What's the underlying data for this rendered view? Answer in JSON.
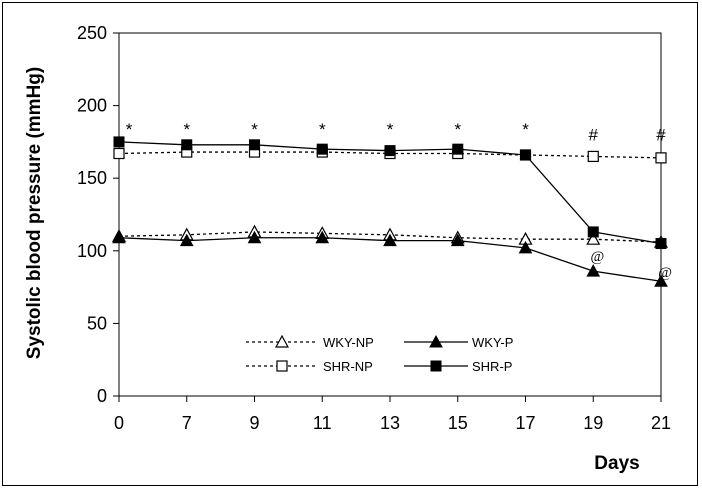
{
  "chart_data": {
    "type": "line",
    "title": "",
    "xlabel": "Days",
    "ylabel": "Systolic blood pressure (mmHg)",
    "categories": [
      "0",
      "7",
      "9",
      "11",
      "13",
      "15",
      "17",
      "19",
      "21"
    ],
    "ylim": [
      0,
      250
    ],
    "yticks": [
      "0",
      "50",
      "100",
      "150",
      "200",
      "250"
    ],
    "grid": false,
    "legend_position": "bottom-center",
    "series": [
      {
        "name": "WKY-NP",
        "line": "dashed",
        "marker": "open-triangle",
        "values": [
          110,
          111,
          113,
          112,
          111,
          109,
          108,
          108,
          106
        ]
      },
      {
        "name": "WKY-P",
        "line": "solid",
        "marker": "filled-triangle",
        "values": [
          109,
          107,
          109,
          109,
          107,
          107,
          102,
          86,
          79
        ]
      },
      {
        "name": "SHR-NP",
        "line": "dashed",
        "marker": "open-square",
        "values": [
          167,
          168,
          168,
          168,
          167,
          167,
          166,
          165,
          164
        ]
      },
      {
        "name": "SHR-P",
        "line": "solid",
        "marker": "filled-square",
        "values": [
          175,
          173,
          173,
          170,
          169,
          170,
          166,
          113,
          105
        ]
      }
    ],
    "annotations": [
      {
        "text": "*",
        "x": "0",
        "y": 184
      },
      {
        "text": "*",
        "x": "7",
        "y": 184
      },
      {
        "text": "*",
        "x": "9",
        "y": 184
      },
      {
        "text": "*",
        "x": "11",
        "y": 184
      },
      {
        "text": "*",
        "x": "13",
        "y": 184
      },
      {
        "text": "*",
        "x": "15",
        "y": 184
      },
      {
        "text": "*",
        "x": "17",
        "y": 184
      },
      {
        "text": "#",
        "x": "19",
        "y": 180
      },
      {
        "text": "#",
        "x": "21",
        "y": 180
      },
      {
        "text": "@",
        "x": "19",
        "y": 97
      },
      {
        "text": "@",
        "x": "21",
        "y": 86
      }
    ]
  }
}
